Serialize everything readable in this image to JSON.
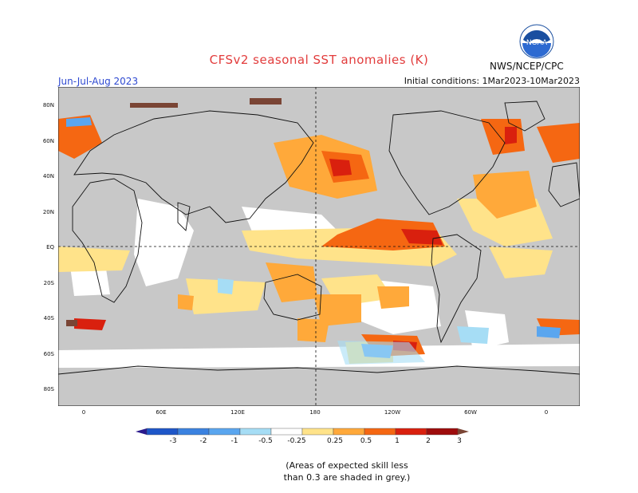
{
  "header": {
    "title": "CFSv2 seasonal SST anomalies (K)",
    "agency": "NWS/NCEP/CPC",
    "season": "Jun-Jul-Aug 2023",
    "initial_conditions": "Initial conditions: 1Mar2023-10Mar2023",
    "logo_text": "NOAA"
  },
  "map": {
    "projection": "equirectangular",
    "land_color": "#c8c8c8",
    "grey_mask_color": "#c8c8c8",
    "lat_labels": [
      "80N",
      "60N",
      "40N",
      "20N",
      "EQ",
      "20S",
      "40S",
      "60S",
      "80S"
    ],
    "lon_labels": [
      "0",
      "60E",
      "120E",
      "180",
      "120W",
      "60W",
      "0"
    ]
  },
  "colorbar": {
    "labels": [
      "-3",
      "-2",
      "-1",
      "-0.5",
      "-0.25",
      "0.25",
      "0.5",
      "1",
      "2",
      "3"
    ],
    "colors": [
      "#2a1a8c",
      "#1e56c8",
      "#3b82e0",
      "#5aa6ef",
      "#a6ddf5",
      "#ffffff",
      "#ffe38a",
      "#ffa93a",
      "#f56712",
      "#d9200e",
      "#9e0c0c",
      "#7a4535"
    ]
  },
  "note": {
    "line1": "(Areas of expected skill less",
    "line2": "than 0.3 are shaded in grey.)"
  }
}
